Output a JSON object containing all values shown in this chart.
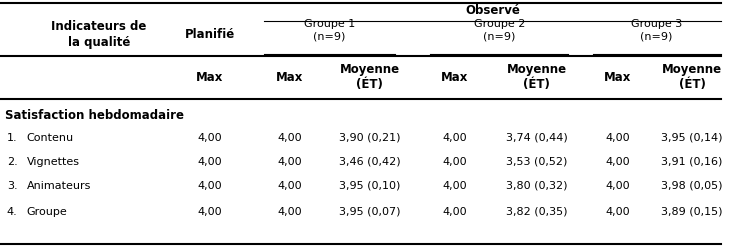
{
  "col0_header": "Indicateurs de\nla qualité",
  "col1_header": "Planifié",
  "observed_header": "Observé",
  "group_headers": [
    "Groupe 1\n(n=9)",
    "Groupe 2\n(n=9)",
    "Groupe 3\n(n=9)"
  ],
  "sub_headers": [
    "Max",
    "Max",
    "Moyenne\n(ÉT)",
    "Max",
    "Moyenne\n(ÉT)",
    "Max",
    "Moyenne\n(ÉT)"
  ],
  "section_header": "Satisfaction hebdomadaire",
  "rows": [
    {
      "num": "1.",
      "label": "Contenu",
      "vals": [
        "4,00",
        "4,00",
        "3,90 (0,21)",
        "4,00",
        "3,74 (0,44)",
        "4,00",
        "3,95 (0,14)"
      ]
    },
    {
      "num": "2.",
      "label": "Vignettes",
      "vals": [
        "4,00",
        "4,00",
        "3,46 (0,42)",
        "4,00",
        "3,53 (0,52)",
        "4,00",
        "3,91 (0,16)"
      ]
    },
    {
      "num": "3.",
      "label": "Animateurs",
      "vals": [
        "4,00",
        "4,00",
        "3,95 (0,10)",
        "4,00",
        "3,80 (0,32)",
        "4,00",
        "3,98 (0,05)"
      ]
    },
    {
      "num": "4.",
      "label": "Groupe",
      "vals": [
        "4,00",
        "4,00",
        "3,95 (0,07)",
        "4,00",
        "3,82 (0,35)",
        "4,00",
        "3,89 (0,15)"
      ]
    }
  ],
  "bg_color": "#ffffff",
  "text_color": "#000000",
  "font_size": 8.0,
  "bold_font_size": 8.5
}
